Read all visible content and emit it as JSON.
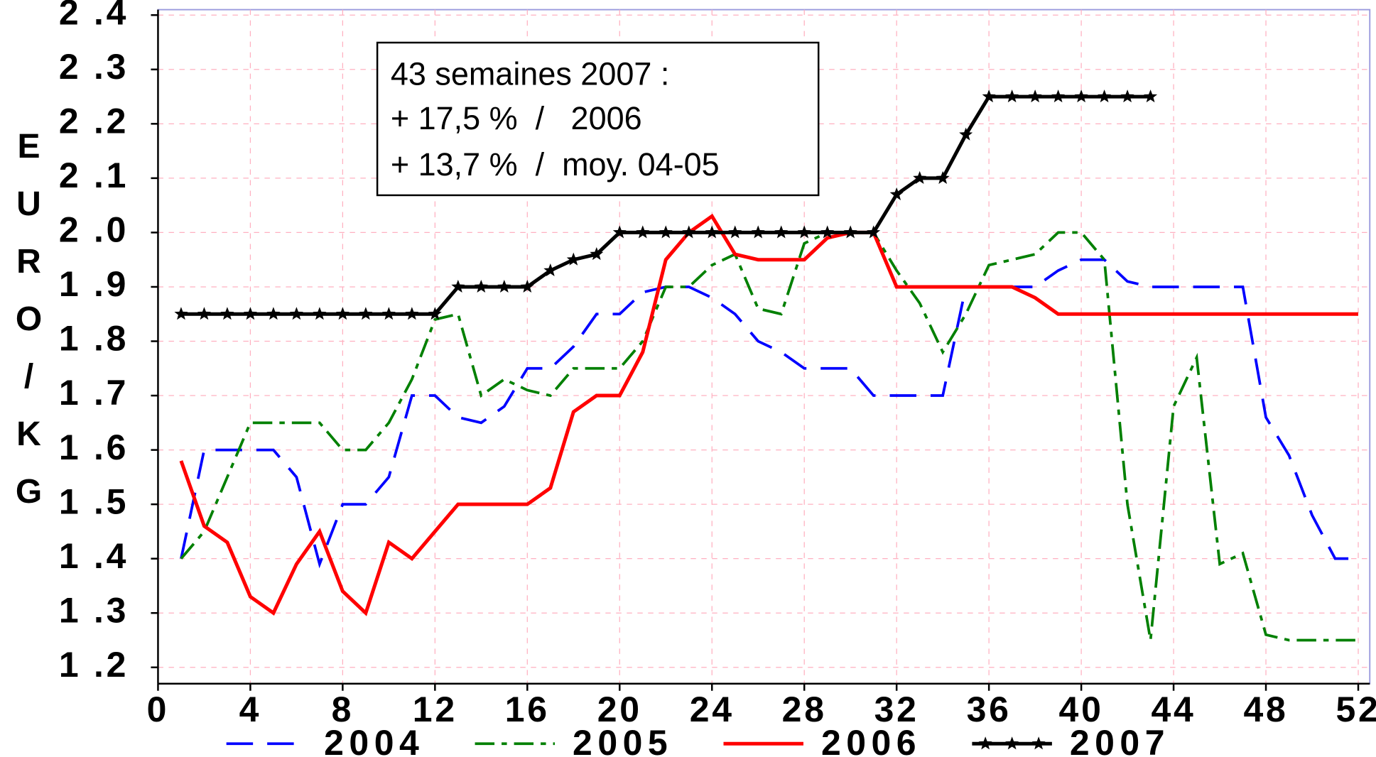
{
  "chart_data": {
    "type": "line",
    "ylabel": "EURO/KG",
    "annotation": [
      "43 semaines 2007 :",
      "+ 17,5 %  /   2006",
      "+ 13,7 %  /  moy. 04-05"
    ],
    "x": [
      1,
      2,
      3,
      4,
      5,
      6,
      7,
      8,
      9,
      10,
      11,
      12,
      13,
      14,
      15,
      16,
      17,
      18,
      19,
      20,
      21,
      22,
      23,
      24,
      25,
      26,
      27,
      28,
      29,
      30,
      31,
      32,
      33,
      34,
      35,
      36,
      37,
      38,
      39,
      40,
      41,
      42,
      43,
      44,
      45,
      46,
      47,
      48,
      49,
      50,
      51,
      52
    ],
    "xlim": [
      0,
      52.5
    ],
    "xticks": [
      0,
      4,
      8,
      12,
      16,
      20,
      24,
      28,
      32,
      36,
      40,
      44,
      48,
      52
    ],
    "ylim": [
      1.17,
      2.41
    ],
    "yticks": [
      {
        "value": 1.2,
        "label": "1 .2"
      },
      {
        "value": 1.3,
        "label": "1 .3"
      },
      {
        "value": 1.4,
        "label": "1 .4"
      },
      {
        "value": 1.5,
        "label": "1 .5"
      },
      {
        "value": 1.6,
        "label": "1 .6"
      },
      {
        "value": 1.7,
        "label": "1 .7"
      },
      {
        "value": 1.8,
        "label": "1 .8"
      },
      {
        "value": 1.9,
        "label": "1 .9"
      },
      {
        "value": 2.0,
        "label": "2 .0"
      },
      {
        "value": 2.1,
        "label": "2 .1"
      },
      {
        "value": 2.2,
        "label": "2 .2"
      },
      {
        "value": 2.3,
        "label": "2 .3"
      },
      {
        "value": 2.4,
        "label": "2 .4"
      }
    ],
    "grid": true,
    "legend": "bottom",
    "series": [
      {
        "name": "2004",
        "color": "#0000ff",
        "linestyle": "dashed",
        "values": [
          1.4,
          1.6,
          1.6,
          1.6,
          1.6,
          1.55,
          1.39,
          1.5,
          1.5,
          1.55,
          1.7,
          1.7,
          1.66,
          1.65,
          1.68,
          1.75,
          1.75,
          1.79,
          1.85,
          1.85,
          1.89,
          1.9,
          1.9,
          1.88,
          1.85,
          1.8,
          1.78,
          1.75,
          1.75,
          1.75,
          1.7,
          1.7,
          1.7,
          1.7,
          1.9,
          1.9,
          1.9,
          1.9,
          1.93,
          1.95,
          1.95,
          1.91,
          1.9,
          1.9,
          1.9,
          1.9,
          1.9,
          1.66,
          1.59,
          1.48,
          1.4,
          1.4
        ]
      },
      {
        "name": "2005",
        "color": "#008000",
        "linestyle": "dashdot",
        "values": [
          1.4,
          1.45,
          1.55,
          1.65,
          1.65,
          1.65,
          1.65,
          1.6,
          1.6,
          1.65,
          1.73,
          1.84,
          1.85,
          1.7,
          1.73,
          1.71,
          1.7,
          1.75,
          1.75,
          1.75,
          1.8,
          1.9,
          1.9,
          1.94,
          1.96,
          1.86,
          1.85,
          1.98,
          2.0,
          2.0,
          2.0,
          1.93,
          1.87,
          1.78,
          1.85,
          1.94,
          1.95,
          1.96,
          2.0,
          2.0,
          1.95,
          1.5,
          1.25,
          1.68,
          1.77,
          1.39,
          1.41,
          1.26,
          1.25,
          1.25,
          1.25,
          1.25
        ]
      },
      {
        "name": "2006",
        "color": "#ff0000",
        "linestyle": "solid",
        "values": [
          1.58,
          1.46,
          1.43,
          1.33,
          1.3,
          1.39,
          1.45,
          1.34,
          1.3,
          1.43,
          1.4,
          1.45,
          1.5,
          1.5,
          1.5,
          1.5,
          1.53,
          1.67,
          1.7,
          1.7,
          1.78,
          1.95,
          2.0,
          2.03,
          1.96,
          1.95,
          1.95,
          1.95,
          1.99,
          2.0,
          2.0,
          1.9,
          1.9,
          1.9,
          1.9,
          1.9,
          1.9,
          1.88,
          1.85,
          1.85,
          1.85,
          1.85,
          1.85,
          1.85,
          1.85,
          1.85,
          1.85,
          1.85,
          1.85,
          1.85,
          1.85,
          1.85
        ]
      },
      {
        "name": "2007",
        "color": "#000000",
        "linestyle": "solid",
        "marker": "star",
        "values": [
          1.85,
          1.85,
          1.85,
          1.85,
          1.85,
          1.85,
          1.85,
          1.85,
          1.85,
          1.85,
          1.85,
          1.85,
          1.9,
          1.9,
          1.9,
          1.9,
          1.93,
          1.95,
          1.96,
          2.0,
          2.0,
          2.0,
          2.0,
          2.0,
          2.0,
          2.0,
          2.0,
          2.0,
          2.0,
          2.0,
          2.0,
          2.07,
          2.1,
          2.1,
          2.18,
          2.25,
          2.25,
          2.25,
          2.25,
          2.25,
          2.25,
          2.25,
          2.25,
          null,
          null,
          null,
          null,
          null,
          null,
          null,
          null,
          null
        ]
      }
    ]
  }
}
